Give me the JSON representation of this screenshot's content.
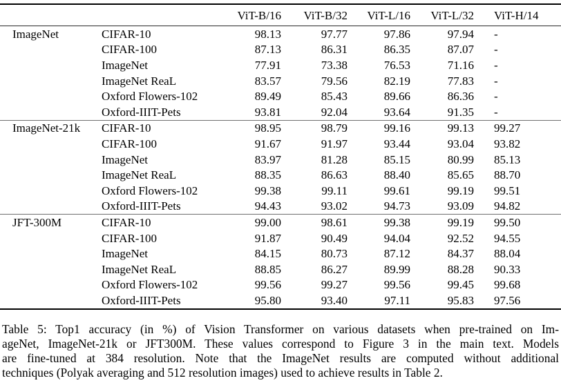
{
  "table": {
    "column_headers": [
      "ViT-B/16",
      "ViT-B/32",
      "ViT-L/16",
      "ViT-L/32",
      "ViT-H/14"
    ],
    "sections": [
      {
        "pretrain_dataset": "ImageNet",
        "rows": [
          {
            "dataset": "CIFAR-10",
            "values": [
              "98.13",
              "97.77",
              "97.86",
              "97.94",
              "-"
            ]
          },
          {
            "dataset": "CIFAR-100",
            "values": [
              "87.13",
              "86.31",
              "86.35",
              "87.07",
              "-"
            ]
          },
          {
            "dataset": "ImageNet",
            "values": [
              "77.91",
              "73.38",
              "76.53",
              "71.16",
              "-"
            ]
          },
          {
            "dataset": "ImageNet ReaL",
            "values": [
              "83.57",
              "79.56",
              "82.19",
              "77.83",
              "-"
            ]
          },
          {
            "dataset": "Oxford Flowers-102",
            "values": [
              "89.49",
              "85.43",
              "89.66",
              "86.36",
              "-"
            ]
          },
          {
            "dataset": "Oxford-IIIT-Pets",
            "values": [
              "93.81",
              "92.04",
              "93.64",
              "91.35",
              "-"
            ]
          }
        ]
      },
      {
        "pretrain_dataset": "ImageNet-21k",
        "rows": [
          {
            "dataset": "CIFAR-10",
            "values": [
              "98.95",
              "98.79",
              "99.16",
              "99.13",
              "99.27"
            ]
          },
          {
            "dataset": "CIFAR-100",
            "values": [
              "91.67",
              "91.97",
              "93.44",
              "93.04",
              "93.82"
            ]
          },
          {
            "dataset": "ImageNet",
            "values": [
              "83.97",
              "81.28",
              "85.15",
              "80.99",
              "85.13"
            ]
          },
          {
            "dataset": "ImageNet ReaL",
            "values": [
              "88.35",
              "86.63",
              "88.40",
              "85.65",
              "88.70"
            ]
          },
          {
            "dataset": "Oxford Flowers-102",
            "values": [
              "99.38",
              "99.11",
              "99.61",
              "99.19",
              "99.51"
            ]
          },
          {
            "dataset": "Oxford-IIIT-Pets",
            "values": [
              "94.43",
              "93.02",
              "94.73",
              "93.09",
              "94.82"
            ]
          }
        ]
      },
      {
        "pretrain_dataset": "JFT-300M",
        "rows": [
          {
            "dataset": "CIFAR-10",
            "values": [
              "99.00",
              "98.61",
              "99.38",
              "99.19",
              "99.50"
            ]
          },
          {
            "dataset": "CIFAR-100",
            "values": [
              "91.87",
              "90.49",
              "94.04",
              "92.52",
              "94.55"
            ]
          },
          {
            "dataset": "ImageNet",
            "values": [
              "84.15",
              "80.73",
              "87.12",
              "84.37",
              "88.04"
            ]
          },
          {
            "dataset": "ImageNet ReaL",
            "values": [
              "88.85",
              "86.27",
              "89.99",
              "88.28",
              "90.33"
            ]
          },
          {
            "dataset": "Oxford Flowers-102",
            "values": [
              "99.56",
              "99.27",
              "99.56",
              "99.45",
              "99.68"
            ]
          },
          {
            "dataset": "Oxford-IIIT-Pets",
            "values": [
              "95.80",
              "93.40",
              "97.11",
              "95.83",
              "97.56"
            ]
          }
        ]
      }
    ]
  },
  "caption": {
    "lines": [
      "Table 5: Top1 accuracy (in %) of Vision Transformer on various datasets when pre-trained on Im-",
      "ageNet, ImageNet-21k or JFT300M. These values correspond to Figure 3 in the main text. Models",
      "are fine-tuned at 384 resolution.  Note that the ImageNet results are computed without additional",
      "techniques (Polyak averaging and 512 resolution images) used to achieve results in Table 2."
    ]
  }
}
